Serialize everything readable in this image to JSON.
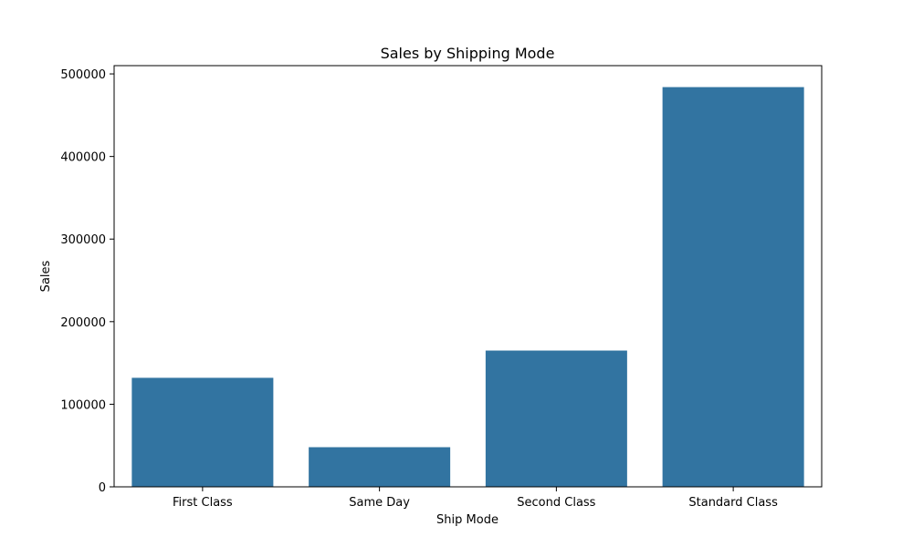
{
  "chart_data": {
    "type": "bar",
    "title": "Sales by Shipping Mode",
    "xlabel": "Ship Mode",
    "ylabel": "Sales",
    "categories": [
      "First Class",
      "Same Day",
      "Second Class",
      "Standard Class"
    ],
    "values": [
      132000,
      48000,
      165000,
      484000
    ],
    "ylim": [
      0,
      510000
    ],
    "yticks": [
      0,
      100000,
      200000,
      300000,
      400000,
      500000
    ],
    "bar_color": "#3274a1",
    "grid": false,
    "legend": "none"
  }
}
